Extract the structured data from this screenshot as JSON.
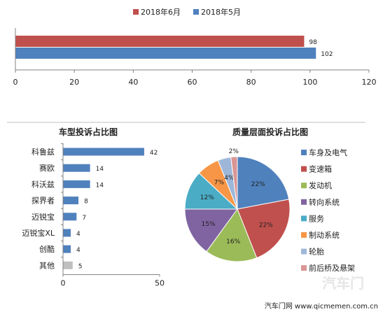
{
  "chart_data": [
    {
      "type": "bar",
      "orientation": "horizontal",
      "series": [
        {
          "name": "2018年6月",
          "values": [
            98
          ],
          "color": "#c0504d"
        },
        {
          "name": "2018年5月",
          "values": [
            102
          ],
          "color": "#4f81bd"
        }
      ],
      "xlim": [
        0,
        120
      ],
      "x_ticks": [
        "0",
        "20",
        "40",
        "60",
        "80",
        "100",
        "120"
      ],
      "legend": "top",
      "grid": false
    },
    {
      "type": "bar",
      "orientation": "horizontal",
      "title": "车型投诉占比图",
      "categories": [
        "科鲁兹",
        "赛欧",
        "科沃兹",
        "探界者",
        "迈锐宝",
        "迈锐宝XL",
        "创酷",
        "其他"
      ],
      "values": [
        42,
        14,
        14,
        8,
        7,
        4,
        4,
        5
      ],
      "colors": [
        "#4f81bd",
        "#4f81bd",
        "#4f81bd",
        "#4f81bd",
        "#4f81bd",
        "#4f81bd",
        "#4f81bd",
        "#bfbfbf"
      ],
      "xlim": [
        0,
        50
      ],
      "x_ticks": [
        "0",
        "50"
      ]
    },
    {
      "type": "pie",
      "title": "质量层面投诉占比图",
      "categories": [
        "车身及电气",
        "变速箱",
        "发动机",
        "转向系统",
        "服务",
        "制动系统",
        "轮胎",
        "前后桥及悬架"
      ],
      "values": [
        22,
        22,
        16,
        15,
        12,
        7,
        4,
        2
      ],
      "labels": [
        "22%",
        "22%",
        "16%",
        "15%",
        "12%",
        "7%",
        "4%",
        "2%"
      ],
      "colors": [
        "#4f81bd",
        "#c0504d",
        "#9bbb59",
        "#8064a2",
        "#4bacc6",
        "#f79646",
        "#9eb7d9",
        "#d99694"
      ],
      "legend": "right"
    }
  ],
  "footer": {
    "source": "汽车门网 www.qicmemen.com.cn",
    "watermark": "汽车门"
  }
}
